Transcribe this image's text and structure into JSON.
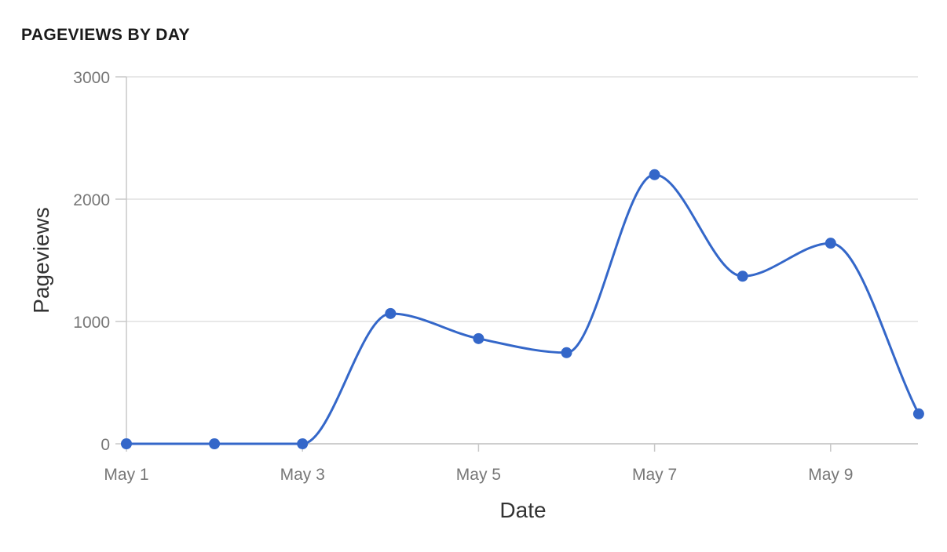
{
  "chart_data": {
    "type": "line",
    "title": "PAGEVIEWS BY DAY",
    "xlabel": "Date",
    "ylabel": "Pageviews",
    "x": [
      "May 1",
      "May 2",
      "May 3",
      "May 4",
      "May 5",
      "May 6",
      "May 7",
      "May 8",
      "May 9",
      "May 10"
    ],
    "x_tick_labels": [
      "May 1",
      "May 3",
      "May 5",
      "May 7",
      "May 9"
    ],
    "y_tick_labels": [
      "0",
      "1000",
      "2000",
      "3000"
    ],
    "ylim": [
      0,
      3000
    ],
    "grid": true,
    "smooth": true,
    "series": [
      {
        "values": [
          0,
          0,
          0,
          1065,
          860,
          745,
          2200,
          1370,
          1640,
          245
        ]
      }
    ],
    "colors": {
      "line": "#3467c9",
      "grid": "#e0e0e0",
      "axis": "#c8c8c8"
    }
  }
}
